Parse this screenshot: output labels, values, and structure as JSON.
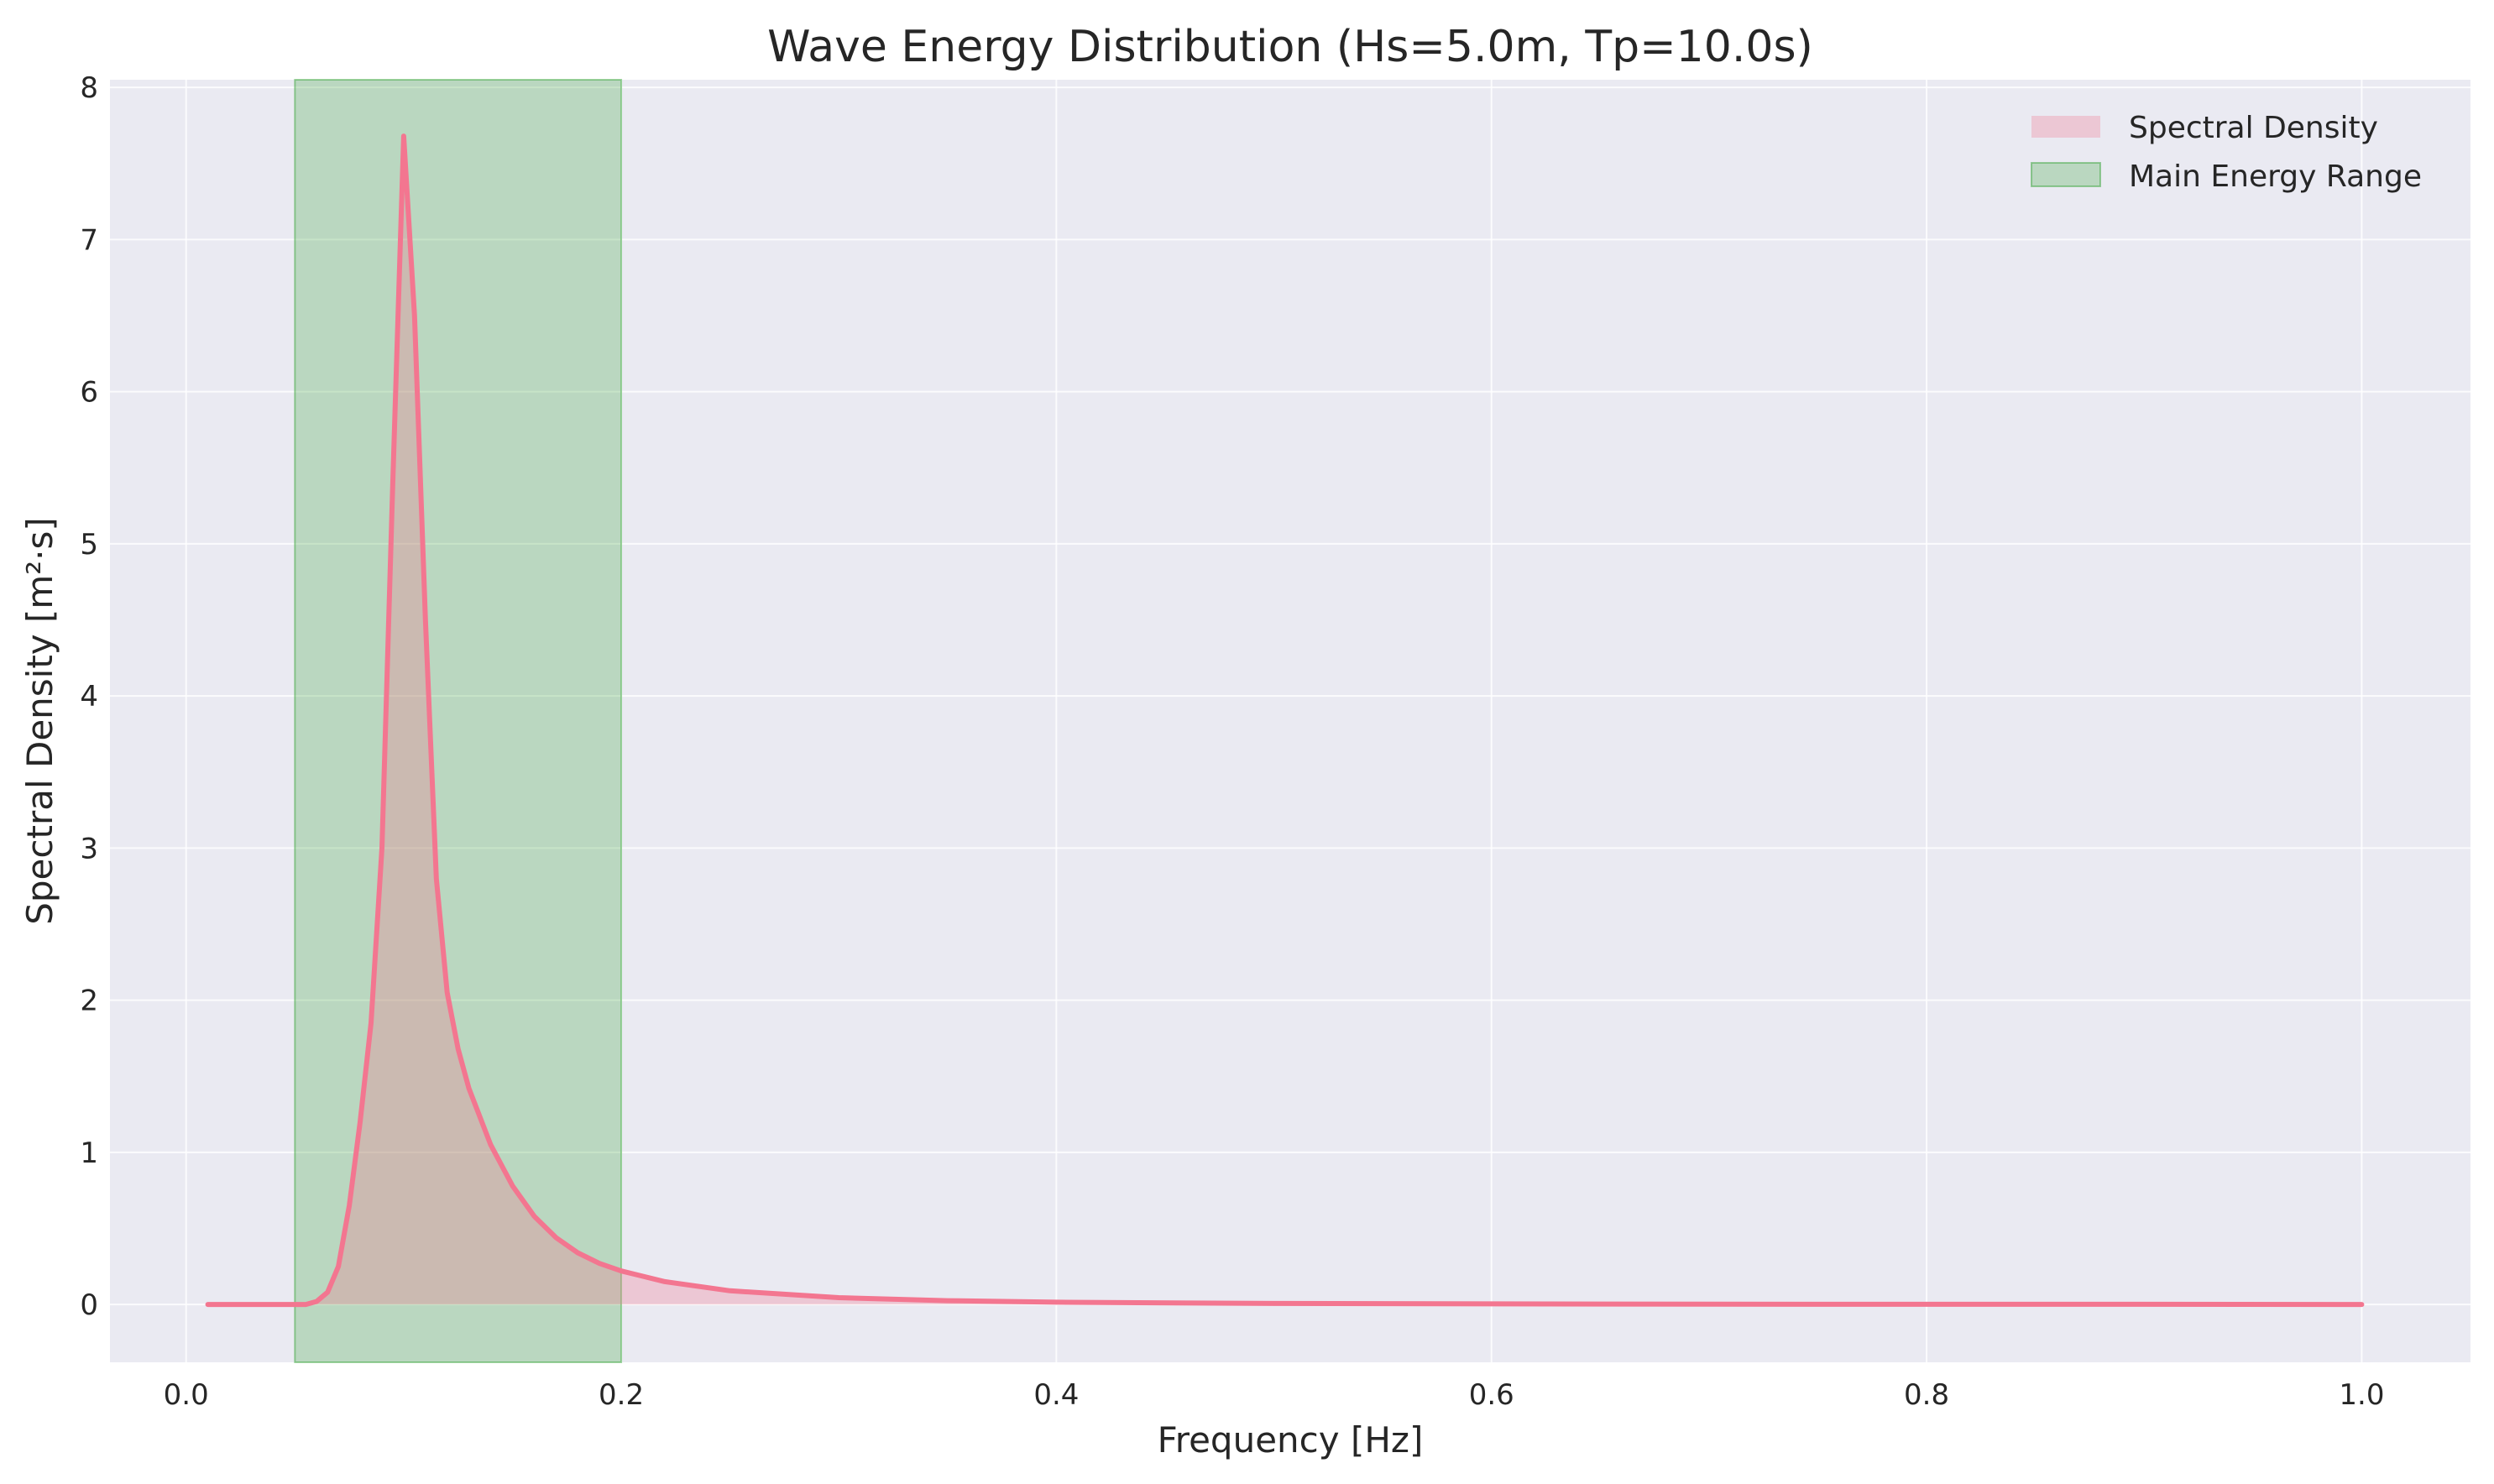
{
  "chart_data": {
    "type": "area",
    "title": "Wave Energy Distribution (Hs=5.0m, Tp=10.0s)",
    "xlabel": "Frequency [Hz]",
    "ylabel": "Spectral Density [m²·s]",
    "xlim": [
      -0.035,
      1.05
    ],
    "ylim": [
      -0.38,
      8.05
    ],
    "xticks": [
      0.0,
      0.2,
      0.4,
      0.6,
      0.8,
      1.0
    ],
    "xtick_labels": [
      "0.0",
      "0.2",
      "0.4",
      "0.6",
      "0.8",
      "1.0"
    ],
    "yticks": [
      0,
      1,
      2,
      3,
      4,
      5,
      6,
      7,
      8
    ],
    "ytick_labels": [
      "0",
      "1",
      "2",
      "3",
      "4",
      "5",
      "6",
      "7",
      "8"
    ],
    "grid": true,
    "legend_position": "top-right",
    "colors": {
      "plot_background": "#eaeaf2",
      "grid": "#ffffff",
      "line": "#f37690",
      "fill": "#f37690",
      "band": "#2ca02c"
    },
    "series": [
      {
        "name": "Spectral Density",
        "x": [
          0.01,
          0.02,
          0.03,
          0.04,
          0.05,
          0.055,
          0.06,
          0.065,
          0.07,
          0.075,
          0.08,
          0.085,
          0.09,
          0.095,
          0.1,
          0.105,
          0.11,
          0.115,
          0.12,
          0.125,
          0.13,
          0.14,
          0.15,
          0.16,
          0.17,
          0.18,
          0.19,
          0.2,
          0.22,
          0.25,
          0.3,
          0.35,
          0.4,
          0.5,
          0.6,
          0.7,
          0.8,
          0.9,
          1.0
        ],
        "values": [
          0,
          0,
          0,
          0,
          0,
          0.0,
          0.02,
          0.08,
          0.25,
          0.65,
          1.2,
          1.85,
          3.0,
          5.4,
          7.68,
          6.5,
          4.5,
          2.8,
          2.05,
          1.68,
          1.42,
          1.05,
          0.78,
          0.58,
          0.44,
          0.34,
          0.27,
          0.22,
          0.15,
          0.09,
          0.045,
          0.025,
          0.015,
          0.007,
          0.004,
          0.002,
          0.001,
          0.001,
          0.0
        ]
      }
    ],
    "bands": [
      {
        "name": "Main Energy Range",
        "x_start": 0.05,
        "x_end": 0.2
      }
    ]
  }
}
